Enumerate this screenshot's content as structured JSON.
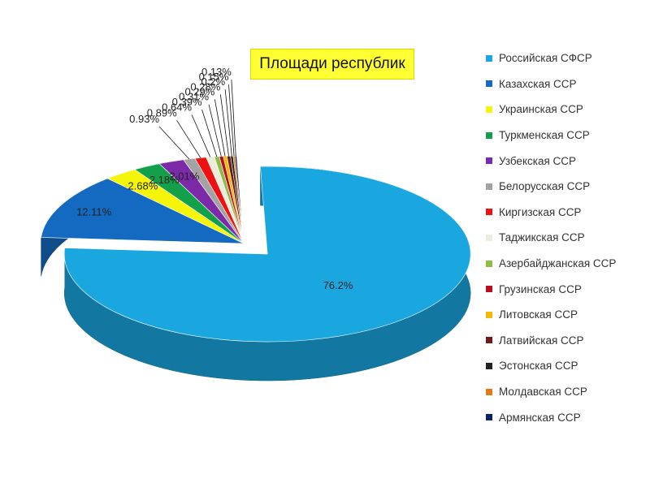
{
  "chart_data": {
    "type": "pie",
    "title": "Площади республик",
    "legend_position": "right",
    "slices": [
      {
        "name": "Российская СФСР",
        "value": 76.2,
        "label": "76.2%",
        "color": "#1aa7e0"
      },
      {
        "name": "Казахская ССР",
        "value": 12.11,
        "label": "12.11%",
        "color": "#1469c0"
      },
      {
        "name": "Украинская ССР",
        "value": 2.68,
        "label": "2.68%",
        "color": "#f5f50a"
      },
      {
        "name": "Туркменская ССР",
        "value": 2.18,
        "label": "2.18%",
        "color": "#12a04a"
      },
      {
        "name": "Узбекская ССР",
        "value": 2.01,
        "label": "2.01%",
        "color": "#7c2aa8"
      },
      {
        "name": "Белорусская ССР",
        "value": 0.93,
        "label": "0.93%",
        "color": "#a3a3a3"
      },
      {
        "name": "Киргизская ССР",
        "value": 0.89,
        "label": "0.89%",
        "color": "#ee1111"
      },
      {
        "name": "Таджикская ССР",
        "value": 0.64,
        "label": "0.64%",
        "color": "#ececdc"
      },
      {
        "name": "Азербайджанская ССР",
        "value": 0.39,
        "label": "0.39%",
        "color": "#8fbc45"
      },
      {
        "name": "Грузинская ССР",
        "value": 0.31,
        "label": "0.31%",
        "color": "#bb0d20"
      },
      {
        "name": "Литовская ССР",
        "value": 0.29,
        "label": "0.29%",
        "color": "#f7b800"
      },
      {
        "name": "Латвийская ССР",
        "value": 0.28,
        "label": "0.28%",
        "color": "#6e1a1a"
      },
      {
        "name": "Эстонская ССР",
        "value": 0.2,
        "label": "0.2%",
        "color": "#222222"
      },
      {
        "name": "Молдавская ССР",
        "value": 0.15,
        "label": "0.15%",
        "color": "#e47a14"
      },
      {
        "name": "Армянская ССР",
        "value": 0.13,
        "label": "0.13%",
        "color": "#0b2466"
      }
    ]
  }
}
